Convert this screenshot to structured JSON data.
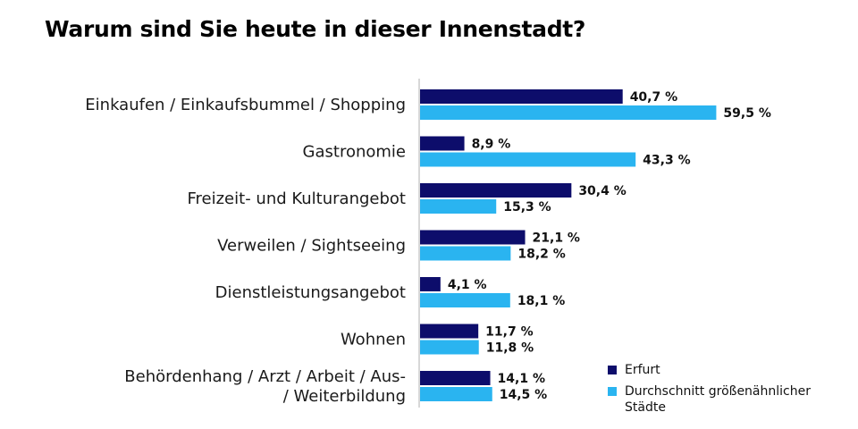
{
  "colors": {
    "erfurt": "#0d0d6b",
    "average": "#2ab4f0",
    "axis": "#b0b0b0"
  },
  "chart_data": {
    "type": "bar",
    "orientation": "horizontal",
    "title": "Warum sind Sie heute in dieser Innenstadt?",
    "categories": [
      [
        "Einkaufen / Einkaufsbummel / Shopping"
      ],
      [
        "Gastronomie"
      ],
      [
        "Freizeit- und Kulturangebot"
      ],
      [
        "Verweilen / Sightseeing"
      ],
      [
        "Dienstleistungsangebot"
      ],
      [
        "Wohnen"
      ],
      [
        "Behördenhang / Arzt / Arbeit / Aus-",
        "/ Weiterbildung"
      ]
    ],
    "series": [
      {
        "name": "Erfurt",
        "values": [
          40.7,
          8.9,
          30.4,
          21.1,
          4.1,
          11.7,
          14.1
        ],
        "labels": [
          "40,7 %",
          "8,9 %",
          "30,4 %",
          "21,1 %",
          "4,1 %",
          "11,7 %",
          "14,1 %"
        ]
      },
      {
        "name": "Durchschnitt größenähnlicher Städte",
        "values": [
          59.5,
          43.3,
          15.3,
          18.2,
          18.1,
          11.8,
          14.5
        ],
        "labels": [
          "59,5 %",
          "43,3 %",
          "15,3 %",
          "18,2 %",
          "18,1 %",
          "11,8 %",
          "14,5 %"
        ]
      }
    ],
    "xlim": [
      0,
      70
    ],
    "legend_position": "bottom-right",
    "grid": false
  },
  "legend": {
    "items": [
      {
        "label": "Erfurt"
      },
      {
        "label": "Durchschnitt größenähnlicher Städte"
      }
    ]
  }
}
